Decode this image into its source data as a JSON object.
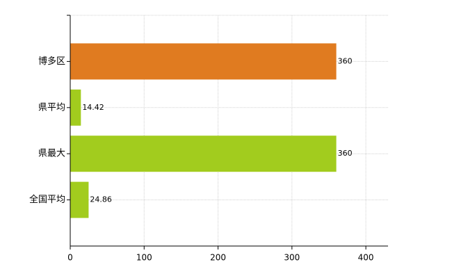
{
  "chart_data": {
    "type": "hbar",
    "categories": [
      "博多区",
      "県平均",
      "県最大",
      "全国平均"
    ],
    "values": [
      360,
      14.42,
      360,
      24.86
    ],
    "colors": [
      "#e07b20",
      "#a2cc1e",
      "#a2cc1e",
      "#a2cc1e"
    ],
    "xlim": [
      0,
      430
    ],
    "xticks": [
      0,
      100,
      200,
      300,
      400
    ],
    "grid": true
  }
}
